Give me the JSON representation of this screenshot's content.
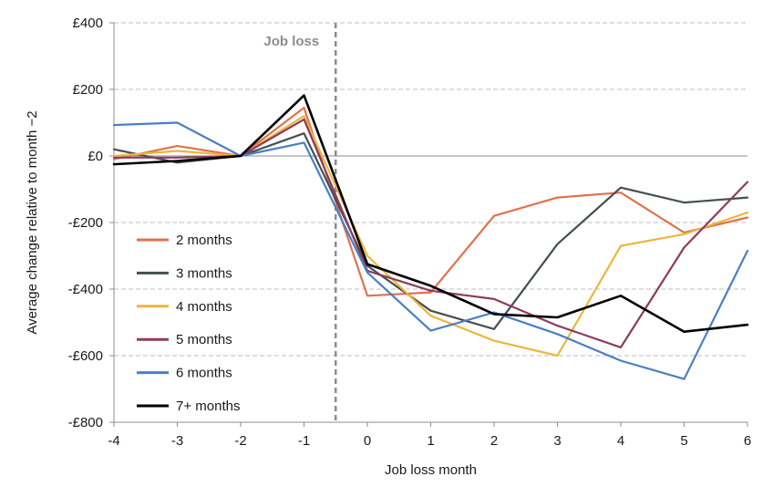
{
  "chart_data": {
    "type": "line",
    "title": "",
    "xlabel": "Job loss month",
    "ylabel": "Average change relative to month −2",
    "x": [
      -4,
      -3,
      -2,
      -1,
      0,
      1,
      2,
      3,
      4,
      5,
      6
    ],
    "x_tick_labels": [
      "-4",
      "-3",
      "-2",
      "-1",
      "0",
      "1",
      "2",
      "3",
      "4",
      "5",
      "6"
    ],
    "xlim": [
      -4,
      6
    ],
    "ylim": [
      -800,
      400
    ],
    "y_ticks": [
      400,
      200,
      0,
      -200,
      -400,
      -600,
      -800
    ],
    "y_tick_labels": [
      "£400",
      "£200",
      "£0",
      "-£200",
      "-£400",
      "-£600",
      "-£800"
    ],
    "grid": "horizontal dashed",
    "legend_position": "left",
    "annotation": {
      "text": "Job loss",
      "x": -0.5
    },
    "series": [
      {
        "name": "2 months",
        "color": "#E0724C",
        "values": [
          -10,
          30,
          0,
          145,
          -420,
          -410,
          -180,
          -125,
          -110,
          -230,
          -185
        ]
      },
      {
        "name": "3 months",
        "color": "#44504F",
        "values": [
          20,
          -20,
          0,
          68,
          -330,
          -465,
          -520,
          -265,
          -95,
          -140,
          -125
        ]
      },
      {
        "name": "4 months",
        "color": "#EDB53C",
        "values": [
          0,
          15,
          0,
          120,
          -300,
          -480,
          -555,
          -600,
          -270,
          -235,
          -170
        ]
      },
      {
        "name": "5 months",
        "color": "#8E3B5E",
        "values": [
          -5,
          -5,
          0,
          110,
          -345,
          -405,
          -430,
          -510,
          -575,
          -275,
          -78
        ]
      },
      {
        "name": "6 months",
        "color": "#4A7FC4",
        "values": [
          93,
          100,
          0,
          40,
          -350,
          -525,
          -470,
          -535,
          -615,
          -670,
          -285
        ]
      },
      {
        "name": "7+ months",
        "color": "#000000",
        "values": [
          -25,
          -15,
          0,
          182,
          -325,
          -390,
          -475,
          -485,
          -420,
          -528,
          -507
        ]
      }
    ]
  }
}
